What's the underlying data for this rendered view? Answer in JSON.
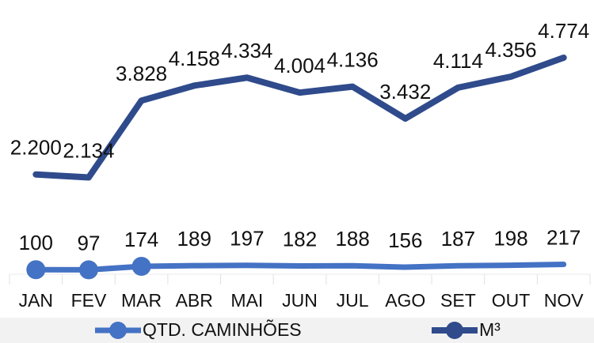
{
  "chart_data": {
    "type": "line",
    "categories": [
      "JAN",
      "FEV",
      "MAR",
      "ABR",
      "MAI",
      "JUN",
      "JUL",
      "AGO",
      "SET",
      "OUT",
      "NOV"
    ],
    "series": [
      {
        "name": "QTD. CAMINHÕES",
        "color": "#4472c4",
        "line_width": 7,
        "markers": [
          true,
          true,
          true,
          false,
          false,
          false,
          false,
          false,
          false,
          false,
          false
        ],
        "values": [
          100,
          97,
          174,
          189,
          197,
          182,
          188,
          156,
          187,
          198,
          217
        ]
      },
      {
        "name": "M³",
        "color": "#2f4b8c",
        "line_width": 8,
        "values": [
          2200,
          2134,
          3828,
          4158,
          4334,
          4004,
          4136,
          3432,
          4114,
          4356,
          4774
        ],
        "value_labels": [
          "2.200",
          "2.134",
          "3.828",
          "4.158",
          "4.334",
          "4.004",
          "4.136",
          "3.432",
          "4.114",
          "4.356",
          "4.774"
        ]
      }
    ],
    "legend": "bottom"
  }
}
